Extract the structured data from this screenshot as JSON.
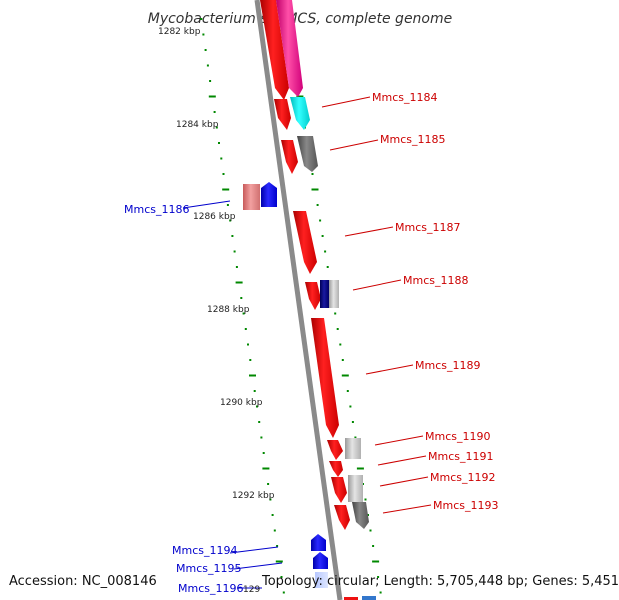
{
  "title": "Mycobacterium sp. MCS, complete genome",
  "coordinates": [
    "1282 kbp",
    "1284 kbp",
    "1286 kbp",
    "1288 kbp",
    "1290 kbp",
    "1292 kbp"
  ],
  "genes": [
    {
      "name": "Mmcs_1184",
      "strand": "forward",
      "color": "#cc0000"
    },
    {
      "name": "Mmcs_1185",
      "strand": "forward",
      "color": "#cc0000"
    },
    {
      "name": "Mmcs_1186",
      "strand": "reverse",
      "color": "#0000cc"
    },
    {
      "name": "Mmcs_1187",
      "strand": "forward",
      "color": "#cc0000"
    },
    {
      "name": "Mmcs_1188",
      "strand": "forward",
      "color": "#cc0000"
    },
    {
      "name": "Mmcs_1189",
      "strand": "forward",
      "color": "#cc0000"
    },
    {
      "name": "Mmcs_1190",
      "strand": "forward",
      "color": "#cc0000"
    },
    {
      "name": "Mmcs_1191",
      "strand": "forward",
      "color": "#cc0000"
    },
    {
      "name": "Mmcs_1192",
      "strand": "forward",
      "color": "#cc0000"
    },
    {
      "name": "Mmcs_1193",
      "strand": "forward",
      "color": "#cc0000"
    },
    {
      "name": "Mmcs_1194",
      "strand": "reverse",
      "color": "#0000cc"
    },
    {
      "name": "Mmcs_1195",
      "strand": "reverse",
      "color": "#0000cc"
    },
    {
      "name": "Mmcs_1196",
      "strand": "reverse",
      "color": "#0000cc"
    }
  ],
  "clipped_label": "129",
  "footer": {
    "accession": "Accession: NC_008146",
    "topology": "Topology: circular; Length: 5,705,448 bp; Genes: 5,451"
  },
  "colors": {
    "forward_cds": "#ff0000",
    "reverse_cds": "#0000ff",
    "backbone": "#888888",
    "gc_skew_dots": "#008800"
  }
}
